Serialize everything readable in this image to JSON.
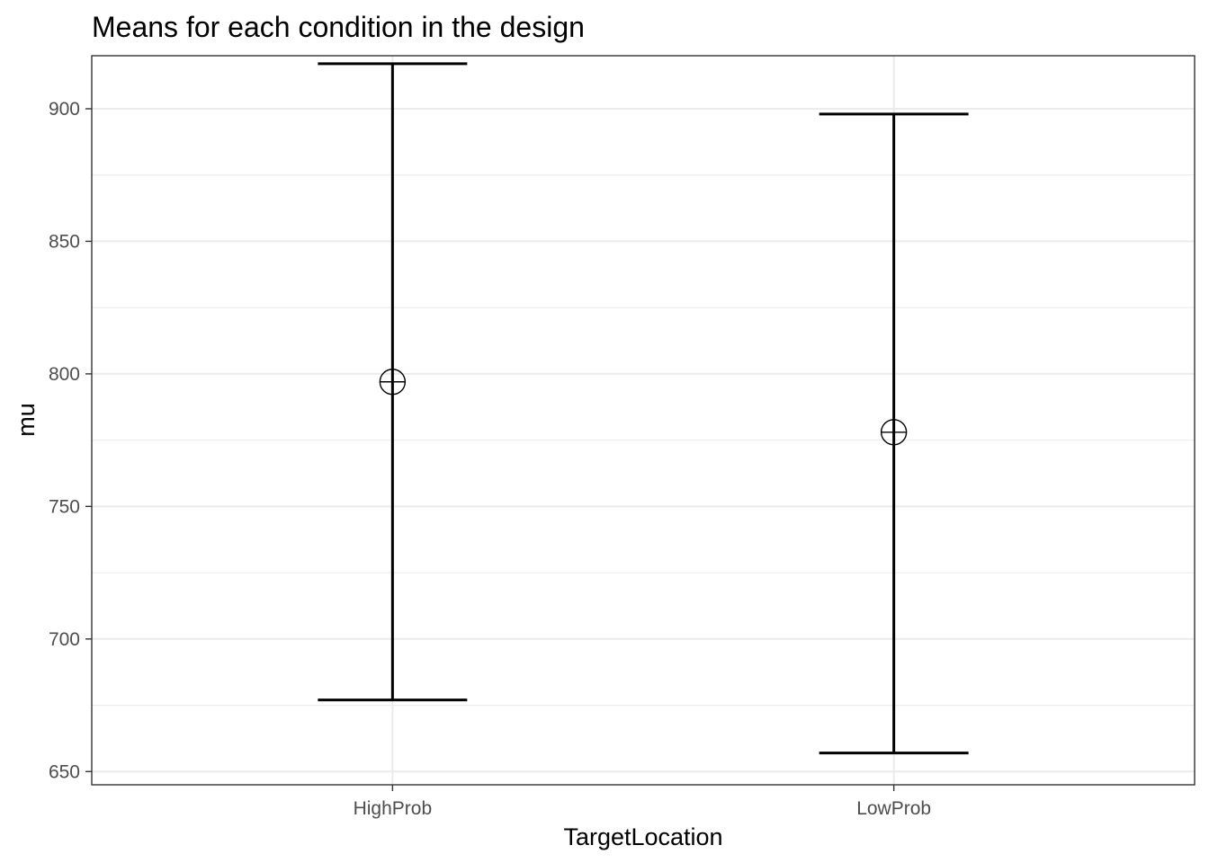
{
  "chart_data": {
    "type": "errorbar",
    "title": "Means for each condition in the design",
    "xlabel": "TargetLocation",
    "ylabel": "mu",
    "categories": [
      "HighProb",
      "LowProb"
    ],
    "means": [
      797,
      778
    ],
    "lower": [
      677,
      657
    ],
    "upper": [
      917,
      898
    ],
    "ylim": [
      645,
      920
    ],
    "yticks": [
      650,
      700,
      750,
      800,
      850,
      900
    ],
    "grid": true,
    "legend": "none",
    "colors": {
      "line": "#000000",
      "grid": "#ebebeb",
      "panel_border": "#333333",
      "tick_text": "#4d4d4d"
    }
  }
}
